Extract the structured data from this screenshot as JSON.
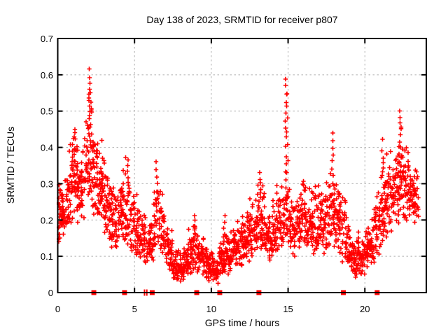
{
  "window": {
    "title": "Day 138 of 2023, SRMTID for receiver p807"
  },
  "chart_data": {
    "type": "scatter",
    "title": "Day 138 of 2023, SRMTID for receiver p807",
    "xlabel": "GPS time / hours",
    "ylabel": "SRMTID / TECUs",
    "xlim": [
      0,
      24
    ],
    "ylim": [
      0,
      0.7
    ],
    "xticks": {
      "values": [
        0,
        5,
        10,
        15,
        20
      ],
      "labels": [
        "0",
        "5",
        "10",
        "15",
        "20"
      ]
    },
    "yticks": {
      "values": [
        0,
        0.1,
        0.2,
        0.3,
        0.4,
        0.5,
        0.6,
        0.7
      ],
      "labels": [
        "0",
        "0.1",
        "0.2",
        "0.3",
        "0.4",
        "0.5",
        "0.6",
        "0.7"
      ]
    },
    "grid": true,
    "legend": "none",
    "marker": "plus",
    "marker_color": "#ff0000",
    "grid_color": "#b0b0b0",
    "border_color": "#000000",
    "background_color": "#ffffff",
    "series_name": "SRMTID",
    "note": "Dense 30s-cadence scatter; values estimated as per-quarter-hour envelopes [hour_start, n_points, y_min, y_max]",
    "envelope_bins": {
      "bin_width_hours": 0.25,
      "bins": [
        [
          0.0,
          30,
          0.13,
          0.33
        ],
        [
          0.25,
          28,
          0.15,
          0.34
        ],
        [
          0.5,
          26,
          0.15,
          0.36
        ],
        [
          0.75,
          28,
          0.18,
          0.47
        ],
        [
          1.0,
          28,
          0.2,
          0.49
        ],
        [
          1.25,
          26,
          0.17,
          0.43
        ],
        [
          1.5,
          26,
          0.18,
          0.44
        ],
        [
          1.75,
          26,
          0.22,
          0.52
        ],
        [
          2.0,
          26,
          0.24,
          0.58
        ],
        [
          2.25,
          24,
          0.2,
          0.47
        ],
        [
          2.5,
          26,
          0.18,
          0.46
        ],
        [
          2.75,
          26,
          0.2,
          0.45
        ],
        [
          3.0,
          26,
          0.15,
          0.4
        ],
        [
          3.25,
          24,
          0.14,
          0.35
        ],
        [
          3.5,
          24,
          0.12,
          0.33
        ],
        [
          3.75,
          22,
          0.12,
          0.3
        ],
        [
          4.0,
          24,
          0.13,
          0.33
        ],
        [
          4.25,
          24,
          0.14,
          0.38
        ],
        [
          4.5,
          22,
          0.12,
          0.37
        ],
        [
          4.75,
          22,
          0.1,
          0.3
        ],
        [
          5.0,
          24,
          0.1,
          0.28
        ],
        [
          5.25,
          22,
          0.09,
          0.25
        ],
        [
          5.5,
          22,
          0.08,
          0.22
        ],
        [
          5.75,
          20,
          0.08,
          0.2
        ],
        [
          6.0,
          20,
          0.08,
          0.22
        ],
        [
          6.25,
          22,
          0.1,
          0.34
        ],
        [
          6.5,
          22,
          0.12,
          0.33
        ],
        [
          6.75,
          22,
          0.1,
          0.28
        ],
        [
          7.0,
          22,
          0.06,
          0.22
        ],
        [
          7.25,
          22,
          0.05,
          0.18
        ],
        [
          7.5,
          24,
          0.03,
          0.15
        ],
        [
          7.75,
          24,
          0.02,
          0.13
        ],
        [
          8.0,
          24,
          0.03,
          0.13
        ],
        [
          8.25,
          22,
          0.04,
          0.15
        ],
        [
          8.5,
          24,
          0.05,
          0.18
        ],
        [
          8.75,
          24,
          0.06,
          0.21
        ],
        [
          9.0,
          24,
          0.05,
          0.2
        ],
        [
          9.25,
          22,
          0.05,
          0.17
        ],
        [
          9.5,
          24,
          0.04,
          0.15
        ],
        [
          9.75,
          22,
          0.03,
          0.14
        ],
        [
          10.0,
          22,
          0.03,
          0.13
        ],
        [
          10.25,
          22,
          0.02,
          0.12
        ],
        [
          10.5,
          24,
          0.04,
          0.14
        ],
        [
          10.75,
          24,
          0.05,
          0.21
        ],
        [
          11.0,
          24,
          0.05,
          0.18
        ],
        [
          11.25,
          24,
          0.06,
          0.2
        ],
        [
          11.5,
          24,
          0.07,
          0.22
        ],
        [
          11.75,
          22,
          0.07,
          0.2
        ],
        [
          12.0,
          24,
          0.08,
          0.22
        ],
        [
          12.25,
          24,
          0.08,
          0.25
        ],
        [
          12.5,
          24,
          0.1,
          0.28
        ],
        [
          12.75,
          22,
          0.1,
          0.27
        ],
        [
          13.0,
          24,
          0.1,
          0.31
        ],
        [
          13.25,
          24,
          0.12,
          0.32
        ],
        [
          13.5,
          22,
          0.08,
          0.25
        ],
        [
          13.75,
          22,
          0.08,
          0.22
        ],
        [
          14.0,
          24,
          0.1,
          0.28
        ],
        [
          14.25,
          24,
          0.1,
          0.31
        ],
        [
          14.5,
          22,
          0.12,
          0.3
        ],
        [
          14.75,
          20,
          0.14,
          0.35
        ],
        [
          15.0,
          22,
          0.12,
          0.3
        ],
        [
          15.25,
          22,
          0.1,
          0.25
        ],
        [
          15.5,
          22,
          0.12,
          0.3
        ],
        [
          15.75,
          22,
          0.14,
          0.33
        ],
        [
          16.0,
          24,
          0.12,
          0.33
        ],
        [
          16.25,
          22,
          0.12,
          0.3
        ],
        [
          16.5,
          24,
          0.1,
          0.28
        ],
        [
          16.75,
          24,
          0.1,
          0.3
        ],
        [
          17.0,
          24,
          0.12,
          0.3
        ],
        [
          17.25,
          24,
          0.1,
          0.28
        ],
        [
          17.5,
          22,
          0.12,
          0.32
        ],
        [
          17.75,
          22,
          0.12,
          0.35
        ],
        [
          18.0,
          24,
          0.12,
          0.33
        ],
        [
          18.25,
          24,
          0.1,
          0.33
        ],
        [
          18.5,
          22,
          0.08,
          0.28
        ],
        [
          18.75,
          24,
          0.06,
          0.22
        ],
        [
          19.0,
          24,
          0.05,
          0.18
        ],
        [
          19.25,
          24,
          0.03,
          0.16
        ],
        [
          19.5,
          22,
          0.05,
          0.18
        ],
        [
          19.75,
          22,
          0.05,
          0.17
        ],
        [
          20.0,
          24,
          0.06,
          0.19
        ],
        [
          20.25,
          22,
          0.07,
          0.22
        ],
        [
          20.5,
          24,
          0.08,
          0.28
        ],
        [
          20.75,
          24,
          0.1,
          0.33
        ],
        [
          21.0,
          24,
          0.12,
          0.37
        ],
        [
          21.25,
          24,
          0.14,
          0.4
        ],
        [
          21.5,
          24,
          0.15,
          0.42
        ],
        [
          21.75,
          22,
          0.16,
          0.44
        ],
        [
          22.0,
          24,
          0.18,
          0.46
        ],
        [
          22.25,
          24,
          0.2,
          0.5
        ],
        [
          22.5,
          24,
          0.18,
          0.42
        ],
        [
          22.75,
          24,
          0.2,
          0.4
        ],
        [
          23.0,
          24,
          0.18,
          0.38
        ],
        [
          23.25,
          20,
          0.2,
          0.37
        ]
      ]
    },
    "spikes": [
      [
        2.05,
        0.44,
        0.615,
        10
      ],
      [
        2.12,
        0.4,
        0.55,
        6
      ],
      [
        14.85,
        0.26,
        0.59,
        15
      ],
      [
        14.95,
        0.33,
        0.55,
        7
      ],
      [
        17.9,
        0.3,
        0.44,
        8
      ],
      [
        22.3,
        0.4,
        0.5,
        7
      ],
      [
        6.45,
        0.22,
        0.36,
        8
      ],
      [
        4.55,
        0.3,
        0.37,
        5
      ],
      [
        13.2,
        0.26,
        0.33,
        6
      ],
      [
        21.15,
        0.32,
        0.42,
        5
      ],
      [
        8.9,
        0.14,
        0.21,
        6
      ],
      [
        10.85,
        0.14,
        0.21,
        5
      ]
    ],
    "axis_gap_markers": {
      "square_hours": [
        2.35,
        4.35,
        6.15,
        9.05,
        10.55,
        13.1,
        18.6,
        20.8
      ],
      "thin_tick_hours": [
        5.65,
        5.8
      ],
      "color": "#ff0000"
    }
  }
}
